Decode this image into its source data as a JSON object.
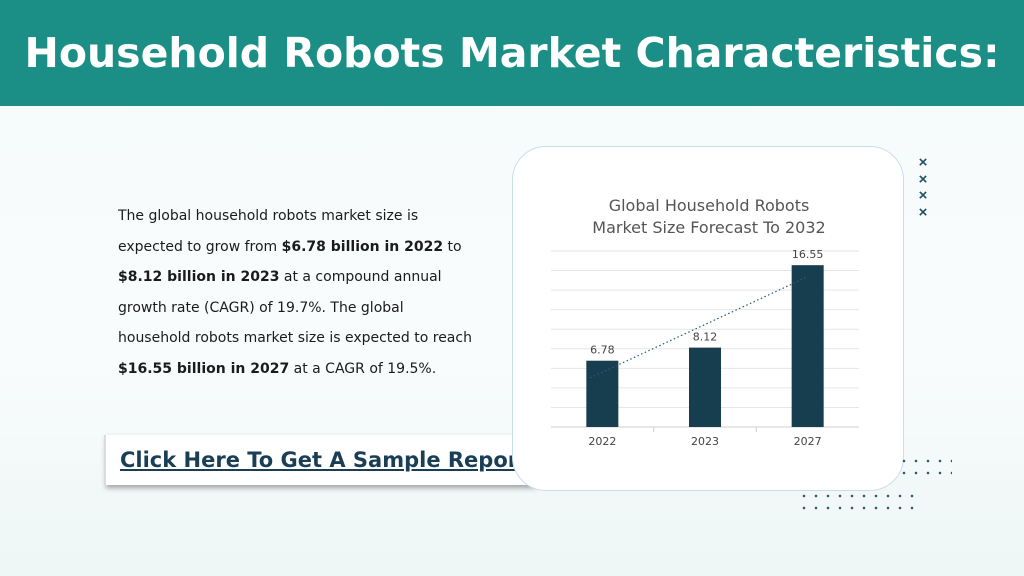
{
  "header": {
    "title": "Household Robots Market Characteristics:"
  },
  "description": {
    "s1": "The global household robots market size is expected to grow from ",
    "b1": "$6.78 billion in 2022",
    "s2": " to ",
    "b2": "$8.12 billion in 2023",
    "s3": " at a compound annual growth rate (CAGR) of 19.7%. The global household robots market size is expected to reach ",
    "b3": "$16.55 billion in 2027",
    "s4": " at a CAGR of 19.5%."
  },
  "cta": {
    "label": "Click Here To Get A Sample Report"
  },
  "chart_data": {
    "type": "bar",
    "title_line1": "Global Household Robots",
    "title_line2": "Market Size Forecast To 2032",
    "categories": [
      "2022",
      "2023",
      "2027"
    ],
    "values": [
      6.78,
      8.12,
      16.55
    ],
    "data_labels": [
      "6.78",
      "8.12",
      "16.55"
    ],
    "ylim": [
      0,
      18
    ],
    "grid": true,
    "trendline": "linear, dotted",
    "bar_color": "#163e4e"
  },
  "colors": {
    "header_bg": "#1b8f85",
    "bar": "#163e4e",
    "cta_text": "#1a3f55"
  },
  "decor": {
    "cross_icon": "×"
  }
}
